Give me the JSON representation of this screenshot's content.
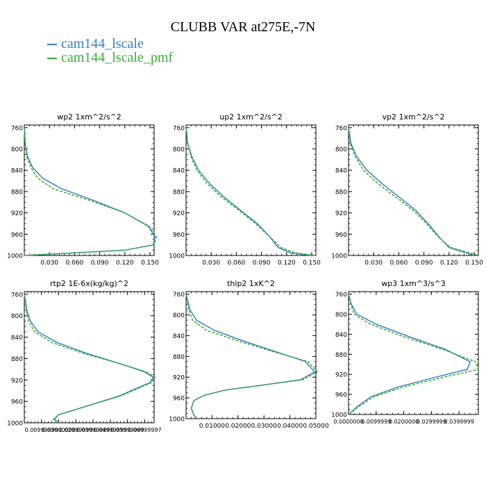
{
  "title": "CLUBB VAR at275E,-7N",
  "colors": {
    "series1": "#3a7fc0",
    "series2": "#3bab3b"
  },
  "legend": [
    {
      "label": "cam144_lscale",
      "color": "#3a7fc0"
    },
    {
      "label": "cam144_lscale_pmf",
      "color": "#3bab3b"
    }
  ],
  "chart_data": [
    {
      "type": "line",
      "title": "wp2   1xm^2/s^2",
      "xlim": [
        0,
        0.155
      ],
      "ylim": [
        1000,
        755
      ],
      "y_reversed": true,
      "xticks": [
        0.03,
        0.06,
        0.09,
        0.12,
        0.15
      ],
      "xtick_labels": [
        "0.030",
        "0.060",
        "0.090",
        "0.120",
        "0.150"
      ],
      "yticks": [
        760,
        800,
        840,
        880,
        920,
        960,
        1000
      ],
      "ytick_labels": [
        "760",
        "800",
        "840",
        "880",
        "920",
        "960",
        "1000"
      ],
      "series": [
        {
          "style": "solid",
          "color": "#3a7fc0",
          "x": [
            0.0,
            0.001,
            0.004,
            0.01,
            0.022,
            0.045,
            0.08,
            0.12,
            0.148,
            0.156,
            0.154,
            0.12,
            0.06,
            0.0
          ],
          "y": [
            760,
            790,
            815,
            835,
            855,
            875,
            895,
            920,
            945,
            965,
            980,
            990,
            995,
            1000
          ]
        },
        {
          "style": "dashed",
          "color": "#3bab3b",
          "x": [
            0.0,
            0.001,
            0.003,
            0.008,
            0.016,
            0.035,
            0.075,
            0.12,
            0.149,
            0.158,
            0.155,
            0.12,
            0.06,
            0.0
          ],
          "y": [
            760,
            790,
            815,
            835,
            855,
            875,
            895,
            920,
            945,
            965,
            980,
            990,
            995,
            1000
          ]
        }
      ]
    },
    {
      "type": "line",
      "title": "up2   1xm^2/s^2",
      "xlim": [
        0,
        0.155
      ],
      "ylim": [
        1000,
        755
      ],
      "y_reversed": true,
      "xticks": [
        0.03,
        0.06,
        0.09,
        0.12,
        0.15
      ],
      "xtick_labels": [
        "0.030",
        "0.060",
        "0.090",
        "0.120",
        "0.150"
      ],
      "yticks": [
        760,
        800,
        840,
        880,
        920,
        960,
        1000
      ],
      "ytick_labels": [
        "760",
        "800",
        "840",
        "880",
        "920",
        "960",
        "1000"
      ],
      "series": [
        {
          "style": "solid",
          "color": "#3a7fc0",
          "x": [
            0.0,
            0.002,
            0.007,
            0.015,
            0.028,
            0.045,
            0.065,
            0.085,
            0.1,
            0.11,
            0.125,
            0.15
          ],
          "y": [
            760,
            790,
            815,
            840,
            865,
            890,
            915,
            940,
            965,
            985,
            995,
            1000
          ]
        },
        {
          "style": "dashed",
          "color": "#3bab3b",
          "x": [
            0.0,
            0.002,
            0.006,
            0.013,
            0.025,
            0.042,
            0.063,
            0.083,
            0.1,
            0.113,
            0.13,
            0.155
          ],
          "y": [
            760,
            790,
            815,
            840,
            865,
            890,
            915,
            940,
            965,
            985,
            995,
            1000
          ]
        }
      ]
    },
    {
      "type": "line",
      "title": "vp2   1xm^2/s^2",
      "xlim": [
        0,
        0.155
      ],
      "ylim": [
        1000,
        755
      ],
      "y_reversed": true,
      "xticks": [
        0.03,
        0.06,
        0.09,
        0.12,
        0.15
      ],
      "xtick_labels": [
        "0.030",
        "0.060",
        "0.090",
        "0.120",
        "0.150"
      ],
      "yticks": [
        760,
        800,
        840,
        880,
        920,
        960,
        1000
      ],
      "ytick_labels": [
        "760",
        "800",
        "840",
        "880",
        "920",
        "960",
        "1000"
      ],
      "series": [
        {
          "style": "solid",
          "color": "#3a7fc0",
          "x": [
            0.0,
            0.003,
            0.01,
            0.022,
            0.04,
            0.06,
            0.08,
            0.095,
            0.108,
            0.12,
            0.14,
            0.15
          ],
          "y": [
            760,
            790,
            815,
            840,
            865,
            890,
            915,
            940,
            965,
            985,
            995,
            1000
          ]
        },
        {
          "style": "dashed",
          "color": "#3bab3b",
          "x": [
            0.0,
            0.002,
            0.008,
            0.018,
            0.035,
            0.056,
            0.077,
            0.093,
            0.107,
            0.122,
            0.145,
            0.155
          ],
          "y": [
            760,
            790,
            815,
            840,
            865,
            890,
            915,
            940,
            965,
            985,
            995,
            1000
          ]
        }
      ]
    },
    {
      "type": "line",
      "title": "rtp2   1E-6x(kg/kg)^2",
      "xlim": [
        0,
        7.55e-05
      ],
      "ylim": [
        1000,
        755
      ],
      "y_reversed": true,
      "xticks": [
        1e-05,
        2e-05,
        3e-05,
        4e-05,
        5e-05,
        6e-05,
        7e-05
      ],
      "xtick_labels": [
        "0.00999999",
        "0.02000000",
        "0.02999999",
        "0.03999999",
        "0.04999999",
        "0.05999999",
        "0.06999997"
      ],
      "yticks": [
        760,
        800,
        840,
        880,
        920,
        960,
        1000
      ],
      "ytick_labels": [
        "760",
        "800",
        "840",
        "880",
        "920",
        "960",
        "1000"
      ],
      "series": [
        {
          "style": "solid",
          "color": "#3a7fc0",
          "x": [
            0.0,
            1.5e-06,
            3.5e-06,
            8e-06,
            1.9e-05,
            3.6e-05,
            5.6e-05,
            7e-05,
            7.5e-05,
            7.3e-05,
            5.5e-05,
            3.5e-05,
            2e-05,
            1.75e-05,
            2e-05
          ],
          "y": [
            760,
            790,
            810,
            830,
            850,
            870,
            890,
            905,
            915,
            925,
            950,
            970,
            985,
            993,
            1000
          ]
        },
        {
          "style": "dashed",
          "color": "#3bab3b",
          "x": [
            0.0,
            1.2e-06,
            2.5e-06,
            6e-06,
            1.6e-05,
            3.4e-05,
            5.6e-05,
            7.1e-05,
            7.6e-05,
            7.4e-05,
            5.6e-05,
            3.5e-05,
            2e-05,
            1.7e-05,
            1.8e-05
          ],
          "y": [
            760,
            790,
            810,
            830,
            850,
            870,
            890,
            905,
            915,
            925,
            950,
            970,
            985,
            993,
            1000
          ]
        }
      ]
    },
    {
      "type": "line",
      "title": "thlp2   1xK^2",
      "xlim": [
        0,
        0.05
      ],
      "ylim": [
        1000,
        755
      ],
      "y_reversed": true,
      "xticks": [
        0.01,
        0.02,
        0.03,
        0.04,
        0.05
      ],
      "xtick_labels": [
        "0.01000",
        "0.02000",
        "0.03000",
        "0.04000",
        "0.05000"
      ],
      "yticks": [
        760,
        800,
        840,
        880,
        920,
        960,
        1000
      ],
      "ytick_labels": [
        "760",
        "800",
        "840",
        "880",
        "920",
        "960",
        "1000"
      ],
      "series": [
        {
          "style": "solid",
          "color": "#3a7fc0",
          "x": [
            0.0,
            0.0015,
            0.004,
            0.011,
            0.022,
            0.034,
            0.046,
            0.0495,
            0.044,
            0.03,
            0.015,
            0.007,
            0.003,
            0.002,
            0.003,
            0.004
          ],
          "y": [
            760,
            790,
            810,
            830,
            850,
            870,
            890,
            910,
            925,
            935,
            945,
            955,
            965,
            980,
            993,
            1000
          ]
        },
        {
          "style": "dashed",
          "color": "#3bab3b",
          "x": [
            0.0,
            0.001,
            0.0025,
            0.008,
            0.02,
            0.033,
            0.047,
            0.0505,
            0.045,
            0.03,
            0.015,
            0.007,
            0.003,
            0.002,
            0.003,
            0.004
          ],
          "y": [
            760,
            790,
            810,
            830,
            850,
            870,
            890,
            910,
            925,
            935,
            945,
            955,
            965,
            980,
            993,
            1000
          ]
        }
      ]
    },
    {
      "type": "line",
      "title": "wp3   1xm^3/s^3",
      "xlim": [
        0,
        0.047
      ],
      "ylim": [
        1000,
        755
      ],
      "y_reversed": true,
      "xticks": [
        0.0,
        0.01,
        0.02,
        0.03,
        0.04
      ],
      "xtick_labels": [
        "0.0000000",
        "0.0099999",
        "0.0200000",
        "0.0299999",
        "0.0399999"
      ],
      "yticks": [
        760,
        800,
        840,
        880,
        920,
        960,
        1000
      ],
      "ytick_labels": [
        "760",
        "800",
        "840",
        "880",
        "920",
        "960",
        "1000"
      ],
      "series": [
        {
          "style": "solid",
          "color": "#3a7fc0",
          "x": [
            0.0,
            0.001,
            0.003,
            0.01,
            0.022,
            0.035,
            0.044,
            0.043,
            0.032,
            0.018,
            0.008,
            0.003,
            0.0
          ],
          "y": [
            760,
            780,
            800,
            820,
            845,
            870,
            895,
            910,
            925,
            945,
            965,
            985,
            1000
          ]
        },
        {
          "style": "dashed",
          "color": "#3bab3b",
          "x": [
            0.0,
            0.0008,
            0.002,
            0.008,
            0.02,
            0.034,
            0.046,
            0.047,
            0.035,
            0.02,
            0.009,
            0.0035,
            0.0
          ],
          "y": [
            760,
            780,
            800,
            820,
            845,
            870,
            895,
            910,
            925,
            945,
            965,
            985,
            1000
          ]
        }
      ]
    }
  ]
}
